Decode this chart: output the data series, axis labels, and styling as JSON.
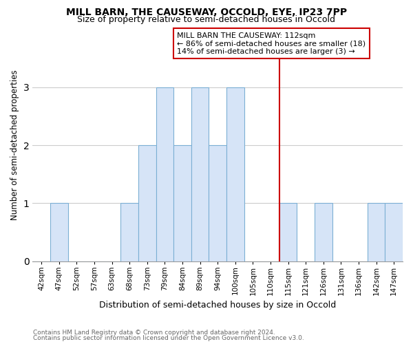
{
  "title": "MILL BARN, THE CAUSEWAY, OCCOLD, EYE, IP23 7PP",
  "subtitle": "Size of property relative to semi-detached houses in Occold",
  "xlabel": "Distribution of semi-detached houses by size in Occold",
  "ylabel": "Number of semi-detached properties",
  "footnote1": "Contains HM Land Registry data © Crown copyright and database right 2024.",
  "footnote2": "Contains public sector information licensed under the Open Government Licence v3.0.",
  "bins": [
    "42sqm",
    "47sqm",
    "52sqm",
    "57sqm",
    "63sqm",
    "68sqm",
    "73sqm",
    "79sqm",
    "84sqm",
    "89sqm",
    "94sqm",
    "100sqm",
    "105sqm",
    "110sqm",
    "115sqm",
    "121sqm",
    "126sqm",
    "131sqm",
    "136sqm",
    "142sqm",
    "147sqm"
  ],
  "values": [
    0,
    1,
    0,
    0,
    0,
    1,
    2,
    3,
    2,
    3,
    2,
    3,
    0,
    0,
    1,
    0,
    1,
    0,
    0,
    1,
    1
  ],
  "bar_color": "#d6e4f7",
  "bar_edge_color": "#7bafd4",
  "background_color": "#ffffff",
  "grid_color": "#cccccc",
  "vline_x_index": 13.5,
  "vline_color": "#cc0000",
  "annotation_line1": "MILL BARN THE CAUSEWAY: 112sqm",
  "annotation_line2": "← 86% of semi-detached houses are smaller (18)",
  "annotation_line3": "14% of semi-detached houses are larger (3) →",
  "annotation_box_color": "#ffffff",
  "annotation_border_color": "#cc0000",
  "ylim": [
    0,
    4
  ],
  "yticks": [
    0,
    1,
    2,
    3,
    4
  ]
}
